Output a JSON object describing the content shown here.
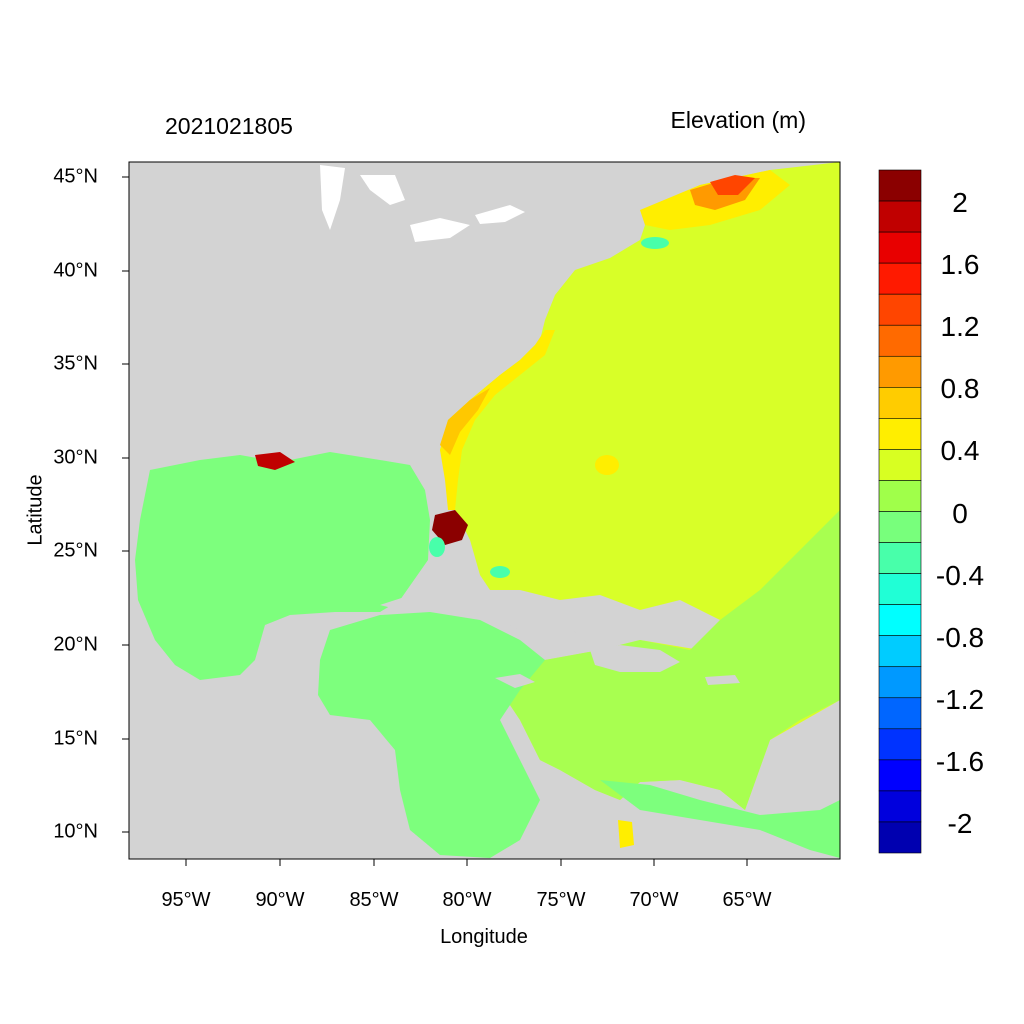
{
  "title_left": "2021021805",
  "title_right": "Elevation (m)",
  "xlabel": "Longitude",
  "ylabel": "Latitude",
  "x_ticks": [
    "95°W",
    "90°W",
    "85°W",
    "80°W",
    "75°W",
    "70°W",
    "65°W"
  ],
  "y_ticks": [
    "45°N",
    "40°N",
    "35°N",
    "30°N",
    "25°N",
    "20°N",
    "15°N",
    "10°N"
  ],
  "colorbar": {
    "labels": [
      "2",
      "1.6",
      "1.2",
      "0.8",
      "0.4",
      "0",
      "-0.4",
      "-0.8",
      "-1.2",
      "-1.6",
      "-2"
    ],
    "colors": [
      "#8b0000",
      "#c00000",
      "#e80000",
      "#ff1a00",
      "#ff4500",
      "#ff6a00",
      "#ff9a00",
      "#ffcc00",
      "#ffee00",
      "#d8ff22",
      "#a0ff4a",
      "#78ff7c",
      "#48ffaa",
      "#20ffd6",
      "#00ffff",
      "#00ccff",
      "#0099ff",
      "#0066ff",
      "#0033ff",
      "#0000ff",
      "#0000dd",
      "#0000b0"
    ]
  },
  "colors": {
    "land": "#d3d3d3",
    "gulf": "#7dff7d",
    "atlantic": "#d8ff28",
    "caribbean_east": "#a8ff50",
    "coastal_high": "#ffee00",
    "surge_max": "#8b0000"
  }
}
